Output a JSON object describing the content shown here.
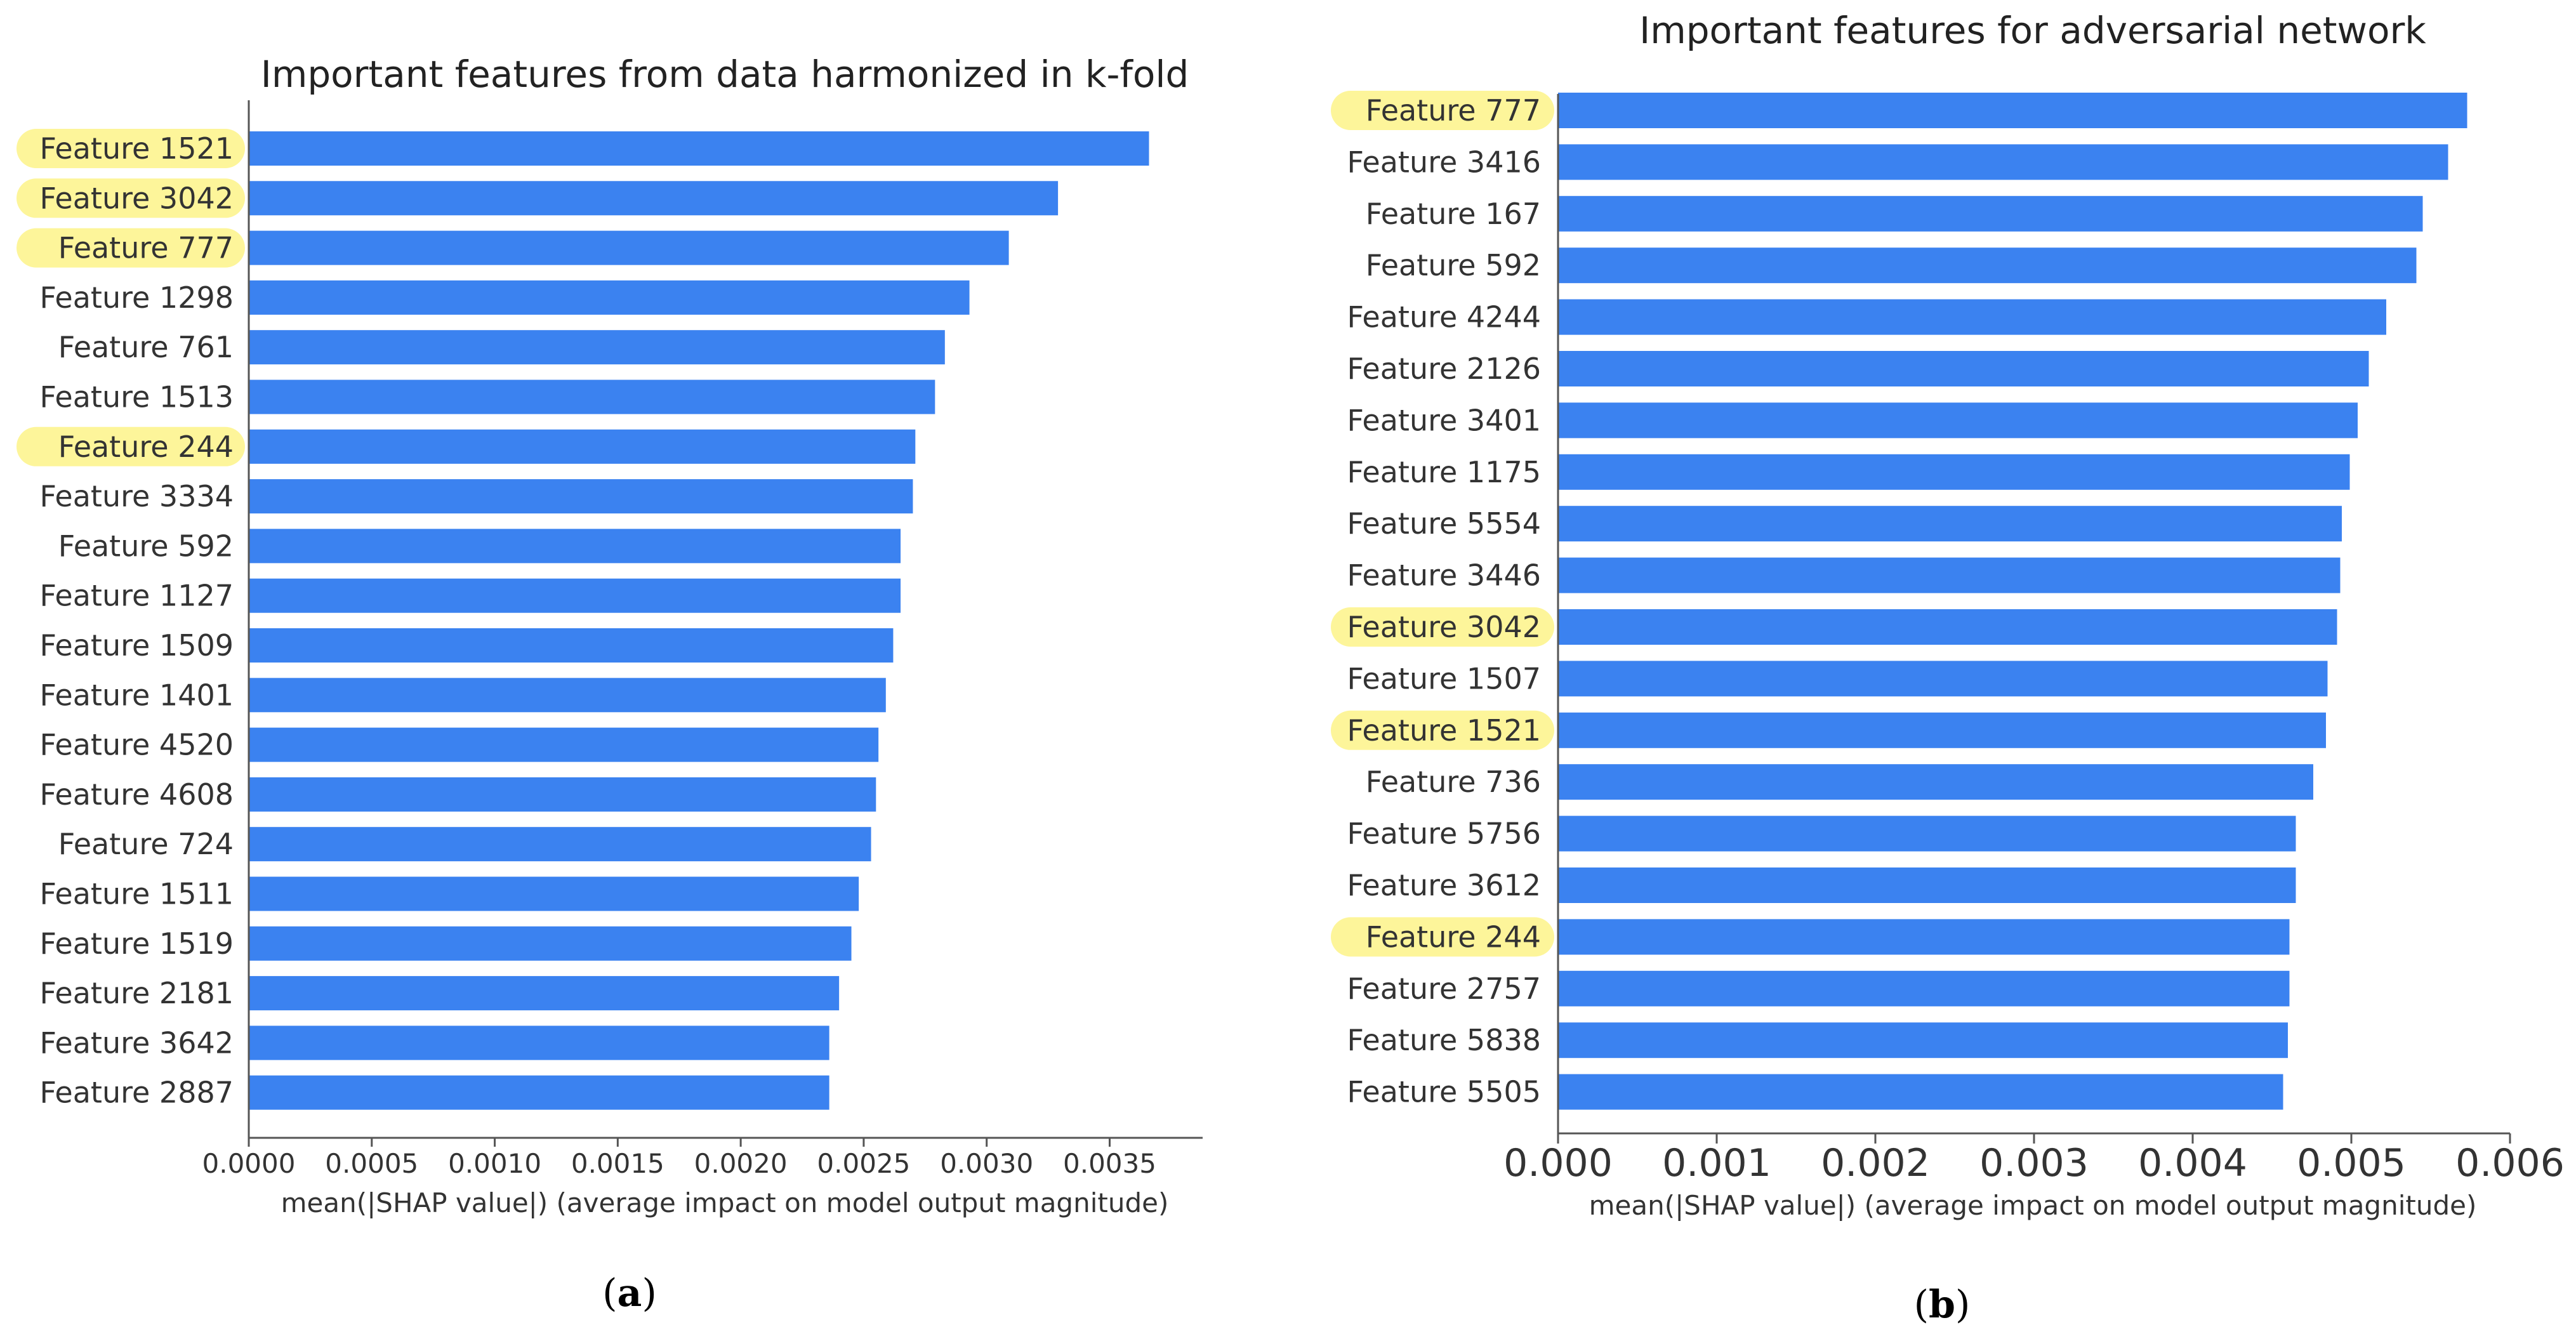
{
  "chart_data": [
    {
      "type": "bar",
      "orientation": "horizontal",
      "title": "Important features from data harmonized in k-fold",
      "xlabel": "mean(|SHAP value|) (average impact on model output magnitude)",
      "ylabel": "",
      "xlim": [
        0,
        0.0039
      ],
      "xticks": [
        "0.0000",
        "0.0005",
        "0.0010",
        "0.0015",
        "0.0020",
        "0.0025",
        "0.0030",
        "0.0035"
      ],
      "categories": [
        "Feature 1521",
        "Feature 3042",
        "Feature 777",
        "Feature 1298",
        "Feature 761",
        "Feature 1513",
        "Feature 244",
        "Feature 3334",
        "Feature 592",
        "Feature 1127",
        "Feature 1509",
        "Feature 1401",
        "Feature 4520",
        "Feature 4608",
        "Feature 724",
        "Feature 1511",
        "Feature 1519",
        "Feature 2181",
        "Feature 3642",
        "Feature 2887"
      ],
      "values": [
        0.00366,
        0.00329,
        0.00309,
        0.00293,
        0.00283,
        0.00279,
        0.00271,
        0.0027,
        0.00265,
        0.00265,
        0.00262,
        0.00259,
        0.00256,
        0.00255,
        0.00253,
        0.00248,
        0.00245,
        0.0024,
        0.00236,
        0.00236
      ],
      "highlighted": [
        "Feature 1521",
        "Feature 3042",
        "Feature 777",
        "Feature 244"
      ],
      "bar_color": "#3b82f0",
      "highlight_color": "#fdf59a",
      "grid": false
    },
    {
      "type": "bar",
      "orientation": "horizontal",
      "title": "Important features for adversarial network",
      "xlabel": "mean(|SHAP value|) (average impact on model output magnitude)",
      "ylabel": "",
      "xlim": [
        0,
        0.006
      ],
      "xticks": [
        "0.000",
        "0.001",
        "0.002",
        "0.003",
        "0.004",
        "0.005",
        "0.006"
      ],
      "categories": [
        "Feature 777",
        "Feature 3416",
        "Feature 167",
        "Feature 592",
        "Feature 4244",
        "Feature 2126",
        "Feature 3401",
        "Feature 1175",
        "Feature 5554",
        "Feature 3446",
        "Feature 3042",
        "Feature 1507",
        "Feature 1521",
        "Feature 736",
        "Feature 5756",
        "Feature 3612",
        "Feature 244",
        "Feature 2757",
        "Feature 5838",
        "Feature 5505"
      ],
      "values": [
        0.00573,
        0.00561,
        0.00545,
        0.00541,
        0.00522,
        0.00511,
        0.00504,
        0.00499,
        0.00494,
        0.00493,
        0.00491,
        0.00485,
        0.00484,
        0.00476,
        0.00465,
        0.00465,
        0.00461,
        0.00461,
        0.0046,
        0.00457
      ],
      "highlighted": [
        "Feature 777",
        "Feature 3042",
        "Feature 1521",
        "Feature 244"
      ],
      "bar_color": "#3b82f0",
      "highlight_color": "#fdf59a",
      "grid": false
    }
  ],
  "captions": [
    {
      "open": "(",
      "letter": "a",
      "close": ")"
    },
    {
      "open": "(",
      "letter": "b",
      "close": ")"
    }
  ]
}
